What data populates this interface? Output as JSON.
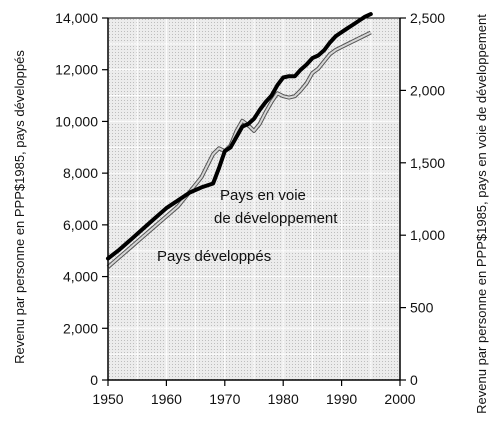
{
  "chart_data": {
    "type": "line",
    "x_ticks": [
      1950,
      1960,
      1970,
      1980,
      1990,
      2000
    ],
    "xlim": [
      1950,
      2000
    ],
    "ylim_left": [
      0,
      14000
    ],
    "ylim_right": [
      0,
      2500
    ],
    "y_ticks_left": [
      "0",
      "2,000",
      "4,000",
      "6,000",
      "8,000",
      "10,000",
      "12,000",
      "14,000"
    ],
    "y_ticks_right": [
      "0",
      "500",
      "1,000",
      "1,500",
      "2,000",
      "2,500"
    ],
    "ylabel_left": "Revenu par personne en PPP$1985, pays développés",
    "ylabel_right": "Revenu par personne en PPP$1985, pays en voie de développement",
    "grid": true,
    "annotations": {
      "developing_line1": "Pays en voie",
      "developing_line2": "de développement",
      "developed": "Pays développés"
    },
    "series": [
      {
        "name": "Pays développés",
        "axis": "left",
        "color": "#000000",
        "x": [
          1950,
          1952,
          1954,
          1956,
          1958,
          1960,
          1962,
          1964,
          1966,
          1968,
          1969,
          1970,
          1971,
          1972,
          1973,
          1974,
          1975,
          1976,
          1977,
          1978,
          1979,
          1980,
          1981,
          1982,
          1983,
          1984,
          1985,
          1986,
          1987,
          1988,
          1989,
          1990,
          1991,
          1992,
          1993,
          1994,
          1995
        ],
        "values": [
          4700,
          5050,
          5450,
          5850,
          6250,
          6650,
          6950,
          7250,
          7450,
          7600,
          8200,
          8850,
          9000,
          9400,
          9800,
          9900,
          10100,
          10450,
          10750,
          11000,
          11400,
          11700,
          11750,
          11750,
          12000,
          12200,
          12450,
          12550,
          12750,
          13050,
          13300,
          13450,
          13600,
          13750,
          13900,
          14050,
          14150
        ]
      },
      {
        "name": "Pays en voie de développement",
        "axis": "right",
        "color": "#9a9a9a",
        "x": [
          1950,
          1952,
          1954,
          1956,
          1958,
          1960,
          1962,
          1964,
          1966,
          1968,
          1969,
          1970,
          1971,
          1972,
          1973,
          1974,
          1975,
          1976,
          1977,
          1978,
          1979,
          1980,
          1981,
          1982,
          1983,
          1984,
          1985,
          1986,
          1987,
          1988,
          1989,
          1990,
          1991,
          1992,
          1993,
          1994,
          1995
        ],
        "values": [
          780,
          850,
          920,
          990,
          1060,
          1130,
          1200,
          1300,
          1400,
          1560,
          1600,
          1580,
          1620,
          1720,
          1790,
          1760,
          1720,
          1770,
          1850,
          1920,
          1980,
          1960,
          1950,
          1960,
          2000,
          2050,
          2120,
          2150,
          2200,
          2250,
          2280,
          2300,
          2320,
          2340,
          2360,
          2380,
          2400
        ]
      }
    ]
  }
}
